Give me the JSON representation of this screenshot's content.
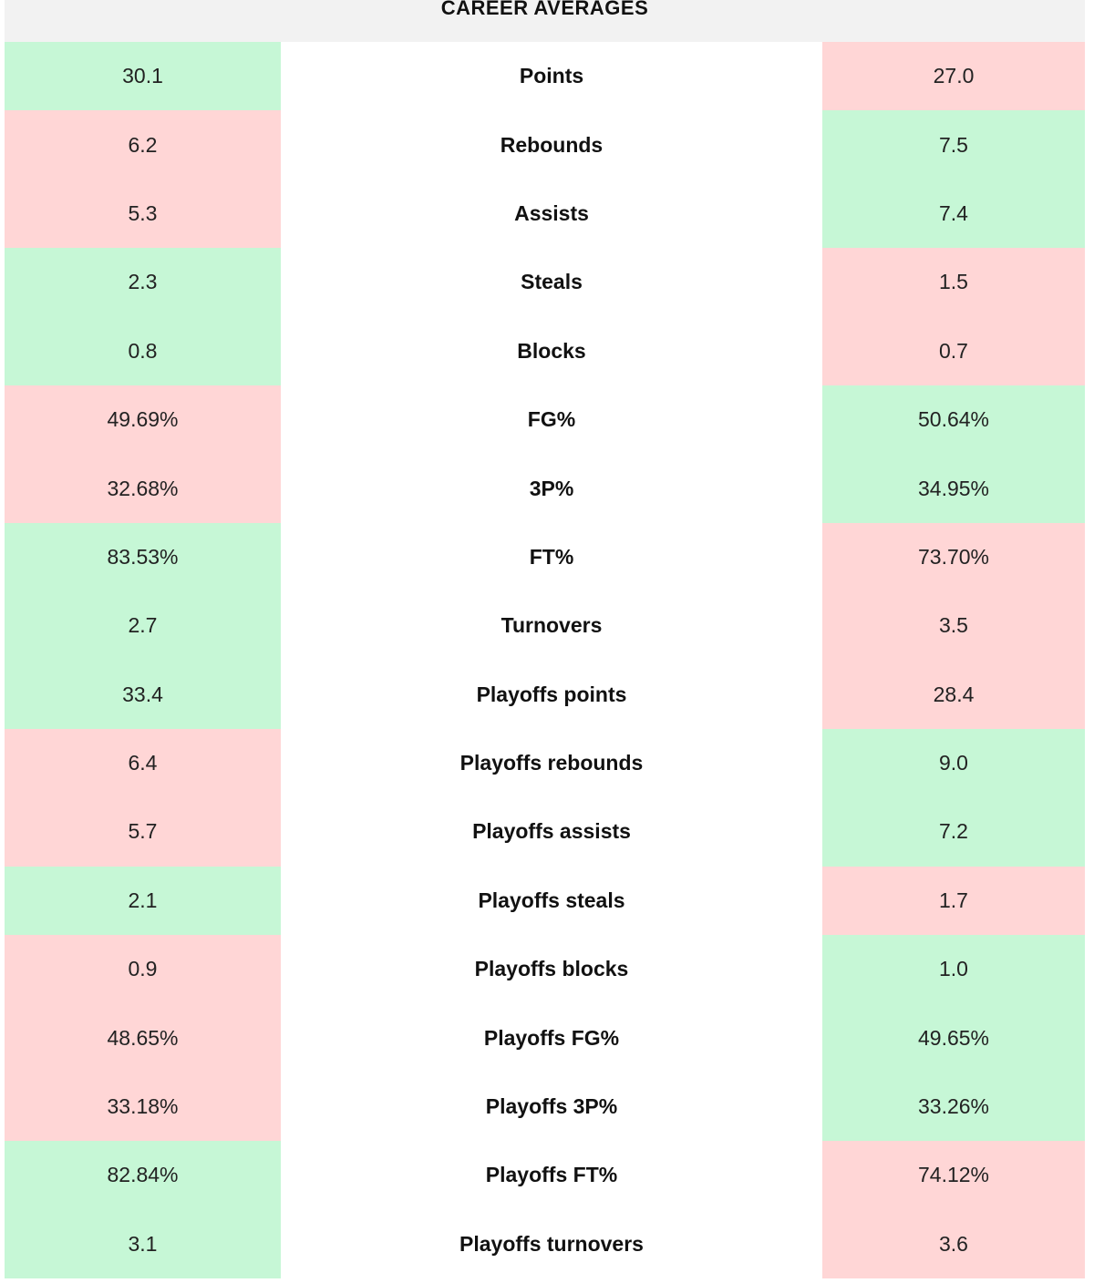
{
  "header": {
    "title": "CAREER AVERAGES"
  },
  "colors": {
    "better": "#c6f7d6",
    "worse": "#ffd6d6",
    "header_bg": "#f2f2f2"
  },
  "rows": [
    {
      "stat": "Points",
      "left": "30.1",
      "right": "27.0",
      "left_better": true
    },
    {
      "stat": "Rebounds",
      "left": "6.2",
      "right": "7.5",
      "left_better": false
    },
    {
      "stat": "Assists",
      "left": "5.3",
      "right": "7.4",
      "left_better": false
    },
    {
      "stat": "Steals",
      "left": "2.3",
      "right": "1.5",
      "left_better": true
    },
    {
      "stat": "Blocks",
      "left": "0.8",
      "right": "0.7",
      "left_better": true
    },
    {
      "stat": "FG%",
      "left": "49.69%",
      "right": "50.64%",
      "left_better": false
    },
    {
      "stat": "3P%",
      "left": "32.68%",
      "right": "34.95%",
      "left_better": false
    },
    {
      "stat": "FT%",
      "left": "83.53%",
      "right": "73.70%",
      "left_better": true
    },
    {
      "stat": "Turnovers",
      "left": "2.7",
      "right": "3.5",
      "left_better": true
    },
    {
      "stat": "Playoffs points",
      "left": "33.4",
      "right": "28.4",
      "left_better": true
    },
    {
      "stat": "Playoffs rebounds",
      "left": "6.4",
      "right": "9.0",
      "left_better": false
    },
    {
      "stat": "Playoffs assists",
      "left": "5.7",
      "right": "7.2",
      "left_better": false
    },
    {
      "stat": "Playoffs steals",
      "left": "2.1",
      "right": "1.7",
      "left_better": true
    },
    {
      "stat": "Playoffs blocks",
      "left": "0.9",
      "right": "1.0",
      "left_better": false
    },
    {
      "stat": "Playoffs FG%",
      "left": "48.65%",
      "right": "49.65%",
      "left_better": false
    },
    {
      "stat": "Playoffs 3P%",
      "left": "33.18%",
      "right": "33.26%",
      "left_better": false
    },
    {
      "stat": "Playoffs FT%",
      "left": "82.84%",
      "right": "74.12%",
      "left_better": true
    },
    {
      "stat": "Playoffs turnovers",
      "left": "3.1",
      "right": "3.6",
      "left_better": true
    }
  ]
}
